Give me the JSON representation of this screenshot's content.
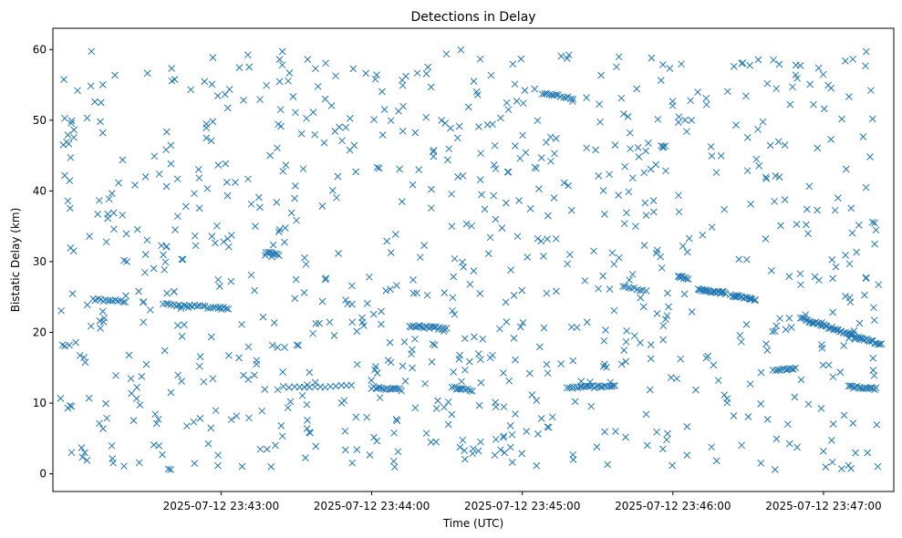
{
  "chart_data": {
    "type": "scatter",
    "title": "Detections in Delay",
    "xlabel": "Time (UTC)",
    "ylabel": "Bistatic Delay (km)",
    "x_unit": "UTC time",
    "xlim": [
      "2025-07-12 23:41:53",
      "2025-07-12 23:47:28"
    ],
    "ylim": [
      -2.5,
      63
    ],
    "xticks": [
      "2025-07-12 23:43:00",
      "2025-07-12 23:44:00",
      "2025-07-12 23:45:00",
      "2025-07-12 23:46:00",
      "2025-07-12 23:47:00"
    ],
    "yticks": [
      0,
      10,
      20,
      30,
      40,
      50,
      60
    ],
    "marker": "x",
    "color": "#1f77b4",
    "grid": false,
    "legend": "none",
    "tracks": [
      {
        "x_start": "2025-07-12 23:42:09",
        "x_end": "2025-07-12 23:42:22",
        "y_start": 24.6,
        "y_end": 24.4,
        "count": 14
      },
      {
        "x_start": "2025-07-12 23:42:37",
        "x_end": "2025-07-12 23:43:03",
        "y_start": 24.0,
        "y_end": 23.4,
        "count": 26
      },
      {
        "x_start": "2025-07-12 23:43:18",
        "x_end": "2025-07-12 23:43:23",
        "y_start": 31.3,
        "y_end": 31.0,
        "count": 8
      },
      {
        "x_start": "2025-07-12 23:43:25",
        "x_end": "2025-07-12 23:43:52",
        "y_start": 12.2,
        "y_end": 12.4,
        "count": 14
      },
      {
        "x_start": "2025-07-12 23:44:00",
        "x_end": "2025-07-12 23:44:12",
        "y_start": 12.2,
        "y_end": 11.9,
        "count": 16
      },
      {
        "x_start": "2025-07-12 23:44:15",
        "x_end": "2025-07-12 23:44:30",
        "y_start": 20.9,
        "y_end": 20.5,
        "count": 22
      },
      {
        "x_start": "2025-07-12 23:44:32",
        "x_end": "2025-07-12 23:44:40",
        "y_start": 12.2,
        "y_end": 11.8,
        "count": 10
      },
      {
        "x_start": "2025-07-12 23:45:08",
        "x_end": "2025-07-12 23:45:20",
        "y_start": 53.8,
        "y_end": 53.1,
        "count": 14
      },
      {
        "x_start": "2025-07-12 23:45:18",
        "x_end": "2025-07-12 23:45:37",
        "y_start": 12.1,
        "y_end": 12.5,
        "count": 24
      },
      {
        "x_start": "2025-07-12 23:45:40",
        "x_end": "2025-07-12 23:45:48",
        "y_start": 26.4,
        "y_end": 26.0,
        "count": 8
      },
      {
        "x_start": "2025-07-12 23:46:02",
        "x_end": "2025-07-12 23:46:06",
        "y_start": 28.0,
        "y_end": 27.5,
        "count": 8
      },
      {
        "x_start": "2025-07-12 23:46:10",
        "x_end": "2025-07-12 23:46:21",
        "y_start": 26.0,
        "y_end": 25.5,
        "count": 22
      },
      {
        "x_start": "2025-07-12 23:46:23",
        "x_end": "2025-07-12 23:46:33",
        "y_start": 25.3,
        "y_end": 24.6,
        "count": 16
      },
      {
        "x_start": "2025-07-12 23:46:40",
        "x_end": "2025-07-12 23:46:48",
        "y_start": 14.6,
        "y_end": 14.8,
        "count": 10
      },
      {
        "x_start": "2025-07-12 23:46:51",
        "x_end": "2025-07-12 23:47:23",
        "y_start": 22.0,
        "y_end": 18.3,
        "count": 50
      },
      {
        "x_start": "2025-07-12 23:47:10",
        "x_end": "2025-07-12 23:47:21",
        "y_start": 12.3,
        "y_end": 12.0,
        "count": 18
      }
    ],
    "clutter": {
      "x_start": "2025-07-12 23:41:56",
      "x_end": "2025-07-12 23:47:23",
      "y_min": 0.5,
      "y_max": 60,
      "count": 900
    }
  }
}
